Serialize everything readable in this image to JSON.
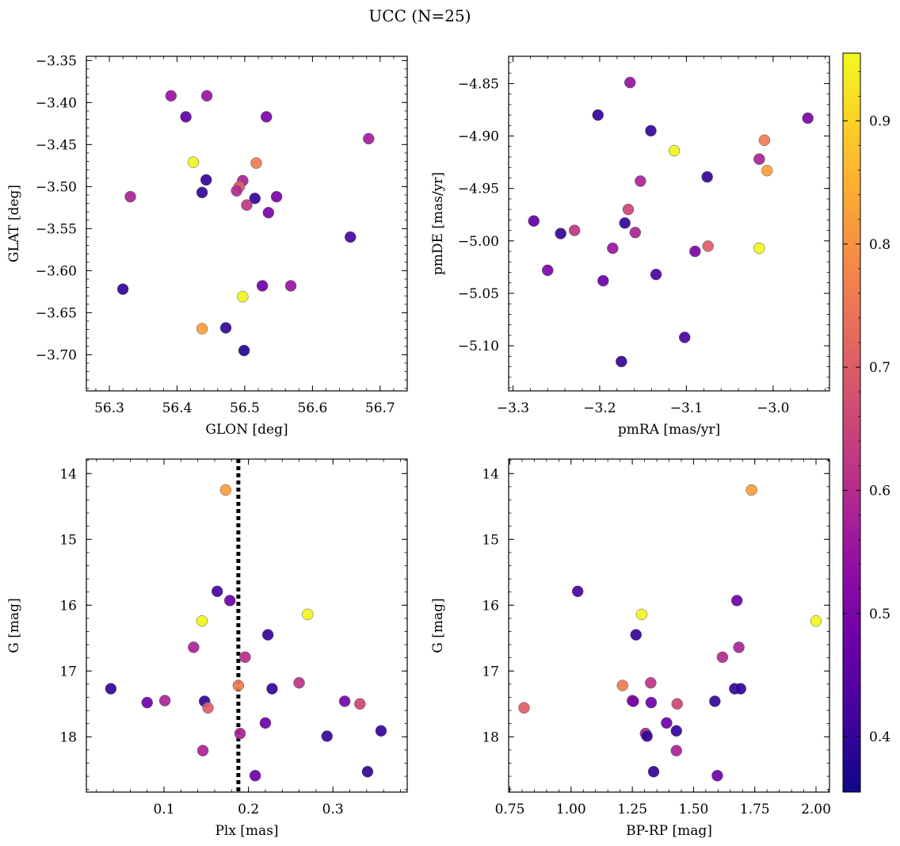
{
  "title": "UCC (N=25)",
  "colorbar": {
    "cmap": "plasma",
    "range": [
      0.355,
      0.955
    ],
    "ticks": [
      0.4,
      0.5,
      0.6,
      0.7,
      0.8,
      0.9
    ],
    "tick_labels": [
      "0.4",
      "0.5",
      "0.6",
      "0.7",
      "0.8",
      "0.9"
    ]
  },
  "chart_data": [
    {
      "type": "scatter",
      "xlabel": "GLON [deg]",
      "ylabel": "GLAT [deg]",
      "xlim": [
        56.266,
        56.74
      ],
      "ylim": [
        -3.743,
        -3.345
      ],
      "y_inverted": false,
      "xticks": [
        56.3,
        56.4,
        56.5,
        56.6,
        56.7
      ],
      "xtick_labels": [
        "56.3",
        "56.4",
        "56.5",
        "56.6",
        "56.7"
      ],
      "yticks": [
        -3.35,
        -3.4,
        -3.45,
        -3.5,
        -3.55,
        -3.6,
        -3.65,
        -3.7
      ],
      "ytick_labels": [
        "−3.35",
        "−3.40",
        "−3.45",
        "−3.50",
        "−3.55",
        "−3.60",
        "−3.65",
        "−3.70"
      ],
      "points": [
        {
          "x": 56.391,
          "y": -3.392,
          "c": 0.55
        },
        {
          "x": 56.444,
          "y": -3.392,
          "c": 0.55
        },
        {
          "x": 56.413,
          "y": -3.417,
          "c": 0.46
        },
        {
          "x": 56.532,
          "y": -3.417,
          "c": 0.5
        },
        {
          "x": 56.683,
          "y": -3.443,
          "c": 0.57
        },
        {
          "x": 56.424,
          "y": -3.471,
          "c": 0.95
        },
        {
          "x": 56.517,
          "y": -3.472,
          "c": 0.76
        },
        {
          "x": 56.443,
          "y": -3.492,
          "c": 0.4
        },
        {
          "x": 56.497,
          "y": -3.493,
          "c": 0.58
        },
        {
          "x": 56.492,
          "y": -3.5,
          "c": 0.7
        },
        {
          "x": 56.488,
          "y": -3.505,
          "c": 0.6
        },
        {
          "x": 56.437,
          "y": -3.507,
          "c": 0.4
        },
        {
          "x": 56.331,
          "y": -3.512,
          "c": 0.58
        },
        {
          "x": 56.547,
          "y": -3.512,
          "c": 0.5
        },
        {
          "x": 56.515,
          "y": -3.514,
          "c": 0.4
        },
        {
          "x": 56.503,
          "y": -3.522,
          "c": 0.62
        },
        {
          "x": 56.535,
          "y": -3.531,
          "c": 0.5
        },
        {
          "x": 56.656,
          "y": -3.56,
          "c": 0.43
        },
        {
          "x": 56.526,
          "y": -3.618,
          "c": 0.48
        },
        {
          "x": 56.568,
          "y": -3.618,
          "c": 0.55
        },
        {
          "x": 56.32,
          "y": -3.622,
          "c": 0.4
        },
        {
          "x": 56.497,
          "y": -3.631,
          "c": 0.95
        },
        {
          "x": 56.437,
          "y": -3.669,
          "c": 0.82
        },
        {
          "x": 56.472,
          "y": -3.668,
          "c": 0.4
        },
        {
          "x": 56.499,
          "y": -3.695,
          "c": 0.38
        }
      ]
    },
    {
      "type": "scatter",
      "xlabel": "pmRA [mas/yr]",
      "ylabel": "pmDE [mas/yr]",
      "xlim": [
        -3.305,
        -2.935
      ],
      "ylim": [
        -5.143,
        -4.824
      ],
      "y_inverted": false,
      "xticks": [
        -3.3,
        -3.2,
        -3.1,
        -3.0
      ],
      "xtick_labels": [
        "−3.3",
        "−3.2",
        "−3.1",
        "−3.0"
      ],
      "yticks": [
        -4.85,
        -4.9,
        -4.95,
        -5.0,
        -5.05,
        -5.1
      ],
      "ytick_labels": [
        "−4.85",
        "−4.90",
        "−4.95",
        "−5.00",
        "−5.05",
        "−5.10"
      ],
      "points": [
        {
          "x": -3.165,
          "y": -4.849,
          "c": 0.55
        },
        {
          "x": -3.202,
          "y": -4.88,
          "c": 0.4
        },
        {
          "x": -2.96,
          "y": -4.883,
          "c": 0.5
        },
        {
          "x": -3.141,
          "y": -4.895,
          "c": 0.4
        },
        {
          "x": -3.01,
          "y": -4.904,
          "c": 0.76
        },
        {
          "x": -3.114,
          "y": -4.914,
          "c": 0.95
        },
        {
          "x": -3.016,
          "y": -4.922,
          "c": 0.58
        },
        {
          "x": -3.007,
          "y": -4.933,
          "c": 0.82
        },
        {
          "x": -3.076,
          "y": -4.939,
          "c": 0.4
        },
        {
          "x": -3.153,
          "y": -4.943,
          "c": 0.58
        },
        {
          "x": -3.167,
          "y": -4.97,
          "c": 0.65
        },
        {
          "x": -3.276,
          "y": -4.981,
          "c": 0.46
        },
        {
          "x": -3.171,
          "y": -4.983,
          "c": 0.4
        },
        {
          "x": -3.229,
          "y": -4.99,
          "c": 0.62
        },
        {
          "x": -3.159,
          "y": -4.992,
          "c": 0.58
        },
        {
          "x": -3.245,
          "y": -4.993,
          "c": 0.4
        },
        {
          "x": -3.075,
          "y": -5.005,
          "c": 0.7
        },
        {
          "x": -3.016,
          "y": -5.007,
          "c": 0.95
        },
        {
          "x": -3.185,
          "y": -5.007,
          "c": 0.55
        },
        {
          "x": -3.09,
          "y": -5.01,
          "c": 0.5
        },
        {
          "x": -3.26,
          "y": -5.028,
          "c": 0.5
        },
        {
          "x": -3.135,
          "y": -5.032,
          "c": 0.43
        },
        {
          "x": -3.196,
          "y": -5.038,
          "c": 0.48
        },
        {
          "x": -3.102,
          "y": -5.092,
          "c": 0.43
        },
        {
          "x": -3.175,
          "y": -5.115,
          "c": 0.4
        }
      ]
    },
    {
      "type": "scatter",
      "xlabel": "Plx [mas]",
      "ylabel": "G [mag]",
      "xlim": [
        0.008,
        0.388
      ],
      "ylim": [
        18.84,
        13.78
      ],
      "y_inverted": true,
      "xticks": [
        0.1,
        0.2,
        0.3
      ],
      "xtick_labels": [
        "0.1",
        "0.2",
        "0.3"
      ],
      "yticks": [
        14,
        15,
        16,
        17,
        18
      ],
      "ytick_labels": [
        "14",
        "15",
        "16",
        "17",
        "18"
      ],
      "vline": 0.188,
      "points": [
        {
          "x": 0.173,
          "y": 14.25,
          "c": 0.82
        },
        {
          "x": 0.163,
          "y": 15.79,
          "c": 0.43
        },
        {
          "x": 0.178,
          "y": 15.93,
          "c": 0.48
        },
        {
          "x": 0.27,
          "y": 16.14,
          "c": 0.95
        },
        {
          "x": 0.145,
          "y": 16.24,
          "c": 0.95
        },
        {
          "x": 0.223,
          "y": 16.45,
          "c": 0.4
        },
        {
          "x": 0.135,
          "y": 16.64,
          "c": 0.58
        },
        {
          "x": 0.196,
          "y": 16.79,
          "c": 0.6
        },
        {
          "x": 0.26,
          "y": 17.18,
          "c": 0.62
        },
        {
          "x": 0.188,
          "y": 17.22,
          "c": 0.76
        },
        {
          "x": 0.037,
          "y": 17.27,
          "c": 0.4
        },
        {
          "x": 0.228,
          "y": 17.27,
          "c": 0.4
        },
        {
          "x": 0.101,
          "y": 17.45,
          "c": 0.58
        },
        {
          "x": 0.314,
          "y": 17.46,
          "c": 0.5
        },
        {
          "x": 0.148,
          "y": 17.46,
          "c": 0.4
        },
        {
          "x": 0.08,
          "y": 17.48,
          "c": 0.48
        },
        {
          "x": 0.332,
          "y": 17.5,
          "c": 0.65
        },
        {
          "x": 0.152,
          "y": 17.56,
          "c": 0.7
        },
        {
          "x": 0.22,
          "y": 17.79,
          "c": 0.48
        },
        {
          "x": 0.357,
          "y": 17.91,
          "c": 0.4
        },
        {
          "x": 0.19,
          "y": 17.95,
          "c": 0.58
        },
        {
          "x": 0.293,
          "y": 17.99,
          "c": 0.4
        },
        {
          "x": 0.146,
          "y": 18.21,
          "c": 0.58
        },
        {
          "x": 0.341,
          "y": 18.53,
          "c": 0.4
        },
        {
          "x": 0.208,
          "y": 18.59,
          "c": 0.48
        }
      ]
    },
    {
      "type": "scatter",
      "xlabel": "BP-RP [mag]",
      "ylabel": "G [mag]",
      "xlim": [
        0.745,
        2.055
      ],
      "ylim": [
        18.84,
        13.78
      ],
      "y_inverted": true,
      "xticks": [
        0.75,
        1.0,
        1.25,
        1.5,
        1.75,
        2.0
      ],
      "xtick_labels": [
        "0.75",
        "1.00",
        "1.25",
        "1.50",
        "1.75",
        "2.00"
      ],
      "yticks": [
        14,
        15,
        16,
        17,
        18
      ],
      "ytick_labels": [
        "14",
        "15",
        "16",
        "17",
        "18"
      ],
      "points": [
        {
          "x": 1.737,
          "y": 14.25,
          "c": 0.82
        },
        {
          "x": 1.027,
          "y": 15.79,
          "c": 0.43
        },
        {
          "x": 1.677,
          "y": 15.93,
          "c": 0.48
        },
        {
          "x": 1.288,
          "y": 16.14,
          "c": 0.95
        },
        {
          "x": 2.0,
          "y": 16.24,
          "c": 0.95
        },
        {
          "x": 1.265,
          "y": 16.45,
          "c": 0.4
        },
        {
          "x": 1.685,
          "y": 16.64,
          "c": 0.58
        },
        {
          "x": 1.618,
          "y": 16.79,
          "c": 0.6
        },
        {
          "x": 1.325,
          "y": 17.18,
          "c": 0.62
        },
        {
          "x": 1.21,
          "y": 17.22,
          "c": 0.76
        },
        {
          "x": 1.668,
          "y": 17.27,
          "c": 0.4
        },
        {
          "x": 1.692,
          "y": 17.27,
          "c": 0.4
        },
        {
          "x": 1.25,
          "y": 17.45,
          "c": 0.58
        },
        {
          "x": 1.254,
          "y": 17.46,
          "c": 0.5
        },
        {
          "x": 1.587,
          "y": 17.46,
          "c": 0.4
        },
        {
          "x": 1.327,
          "y": 17.48,
          "c": 0.48
        },
        {
          "x": 1.433,
          "y": 17.5,
          "c": 0.65
        },
        {
          "x": 0.808,
          "y": 17.56,
          "c": 0.7
        },
        {
          "x": 1.39,
          "y": 17.79,
          "c": 0.48
        },
        {
          "x": 1.43,
          "y": 17.91,
          "c": 0.4
        },
        {
          "x": 1.304,
          "y": 17.95,
          "c": 0.58
        },
        {
          "x": 1.31,
          "y": 17.99,
          "c": 0.4
        },
        {
          "x": 1.43,
          "y": 18.21,
          "c": 0.58
        },
        {
          "x": 1.337,
          "y": 18.53,
          "c": 0.4
        },
        {
          "x": 1.597,
          "y": 18.59,
          "c": 0.48
        }
      ]
    }
  ]
}
